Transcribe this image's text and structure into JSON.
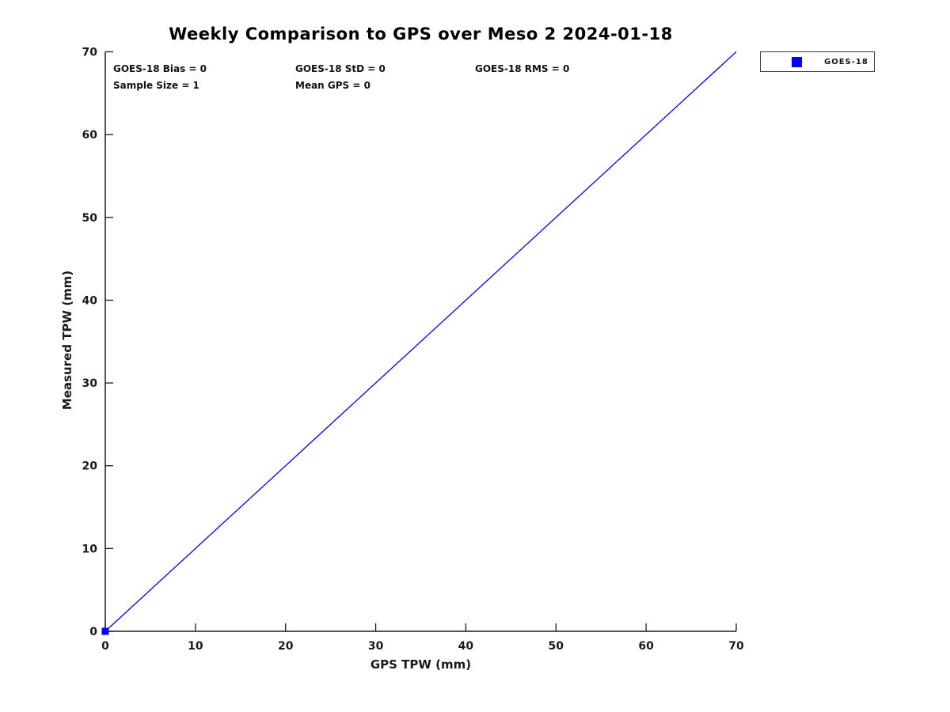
{
  "title": "Weekly Comparison to GPS over Meso 2 2024-01-18",
  "colors": {
    "background": "#ffffff",
    "axis": "#1a1a1a",
    "text": "#111111",
    "series_blue": "#0000ff",
    "line_blue": "#0000ee"
  },
  "chart_data": {
    "type": "scatter",
    "title": "Weekly Comparison to GPS over Meso 2 2024-01-18",
    "xlabel": "GPS TPW (mm)",
    "ylabel": "Measured TPW (mm)",
    "xlim": [
      0,
      70
    ],
    "ylim": [
      0,
      70
    ],
    "xticks": [
      0,
      10,
      20,
      30,
      40,
      50,
      60,
      70
    ],
    "yticks": [
      0,
      10,
      20,
      30,
      40,
      50,
      60,
      70
    ],
    "grid": false,
    "legend": {
      "position": "outside-upper-right",
      "entries": [
        {
          "label": "GOES-18",
          "marker": "square",
          "color": "#0000ff"
        }
      ]
    },
    "series": [
      {
        "name": "GOES-18",
        "type": "scatter",
        "marker": "square",
        "marker_size": 9,
        "color": "#0000ff",
        "points": [
          [
            0,
            0
          ]
        ]
      }
    ],
    "identity_line": {
      "from": [
        0,
        0
      ],
      "to": [
        70,
        70
      ],
      "color": "#0000ee",
      "width": 1.3
    },
    "annotations": [
      {
        "id": "bias",
        "text": "GOES-18 Bias = 0"
      },
      {
        "id": "std",
        "text": "GOES-18 StD = 0"
      },
      {
        "id": "rms",
        "text": "GOES-18 RMS = 0"
      },
      {
        "id": "sample_size",
        "text": "Sample Size = 1"
      },
      {
        "id": "mean_gps",
        "text": "Mean GPS = 0"
      }
    ]
  }
}
